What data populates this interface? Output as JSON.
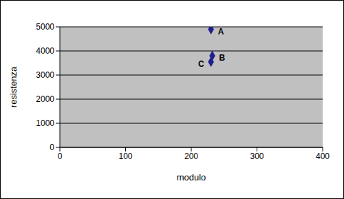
{
  "chart_data": {
    "type": "scatter",
    "x_label": "modulo",
    "y_label": "resistenza",
    "x": [
      230,
      232,
      230
    ],
    "values": [
      4900,
      3800,
      3550
    ],
    "point_labels": [
      "A",
      "B",
      "C"
    ],
    "color": "#1f1f8f",
    "marker": "diamond",
    "xlim": [
      0,
      400
    ],
    "xticks": [
      0,
      100,
      200,
      300,
      400
    ],
    "ylim": [
      0,
      5000
    ],
    "yticks": [
      0,
      1000,
      2000,
      3000,
      4000,
      5000
    ],
    "grid": true
  }
}
